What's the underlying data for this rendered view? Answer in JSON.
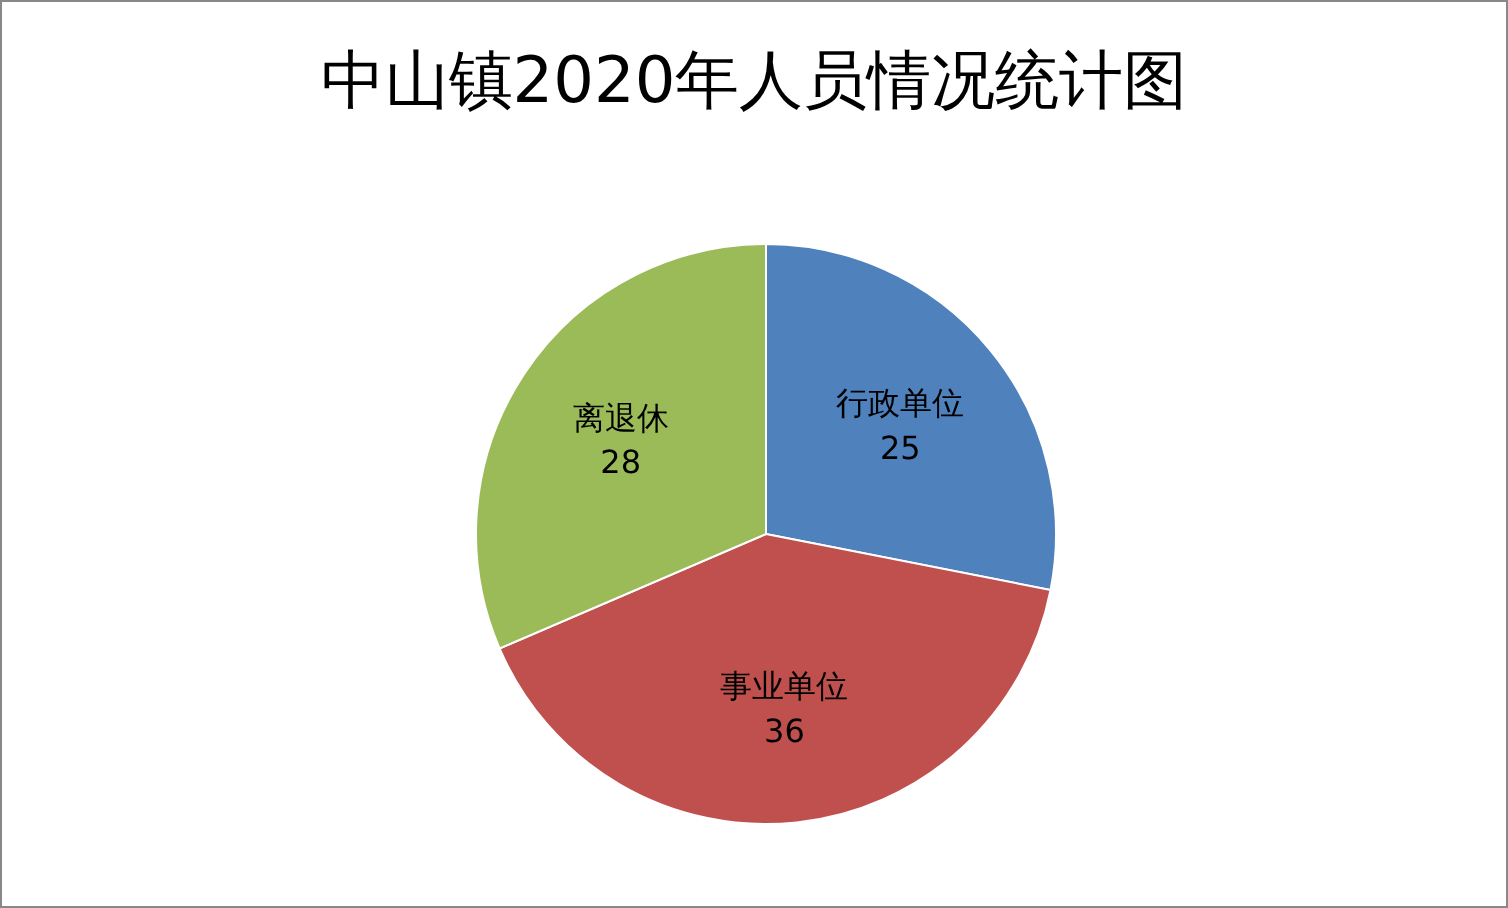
{
  "chart_data": {
    "type": "pie",
    "title": "中山镇2020年人员情况统计图",
    "categories": [
      "行政单位",
      "事业单位",
      "离退休"
    ],
    "values": [
      25,
      36,
      28
    ],
    "colors": [
      "#4f81bd",
      "#c0504d",
      "#9bbb59"
    ],
    "data_labels": true
  }
}
